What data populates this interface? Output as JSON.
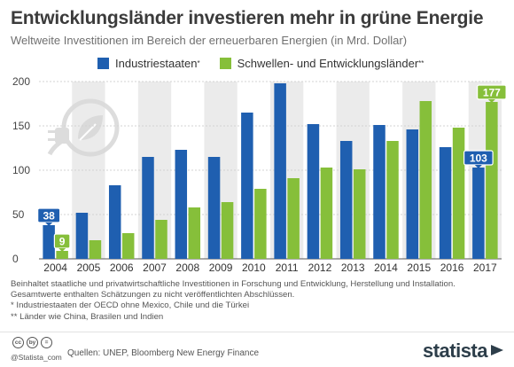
{
  "title": "Entwicklungsländer investieren mehr in grüne Energie",
  "subtitle": "Weltweite Investitionen im Bereich der erneuerbaren Energien (in Mrd. Dollar)",
  "legend": {
    "series1": "Industriestaaten",
    "series1_mark": "*",
    "series2": "Schwellen- und Entwicklungsländer",
    "series2_mark": "**"
  },
  "notes": {
    "line1": "Beinhaltet staatliche und privatwirtschaftliche Investitionen in Forschung und Entwicklung, Herstellung und Installation.",
    "line2": "Gesamtwerte enthalten Schätzungen zu nicht veröffentlichten Abschlüssen.",
    "line3": "*   Industriestaaten der OECD ohne Mexico, Chile und die Türkei",
    "line4": "** Länder wie China, Brasilen und Indien"
  },
  "footer": {
    "cc_icons": [
      "cc",
      "by",
      "="
    ],
    "handle": "@Statista_com",
    "sources": "Quellen: UNEP, Bloomberg New Energy Finance",
    "brand": "statista"
  },
  "colors": {
    "series1": "#1f5fb0",
    "series2": "#86bf3a",
    "band": "#ebebeb",
    "grid": "#d3d3d3"
  },
  "chart_data": {
    "type": "bar",
    "title": "Entwicklungsländer investieren mehr in grüne Energie",
    "subtitle": "Weltweite Investitionen im Bereich der erneuerbaren Energien (in Mrd. Dollar)",
    "categories": [
      "2004",
      "2005",
      "2006",
      "2007",
      "2008",
      "2009",
      "2010",
      "2011",
      "2012",
      "2013",
      "2014",
      "2015",
      "2016",
      "2017"
    ],
    "series": [
      {
        "name": "Industriestaaten*",
        "values": [
          38,
          52,
          83,
          115,
          123,
          115,
          165,
          198,
          152,
          133,
          151,
          146,
          126,
          103
        ]
      },
      {
        "name": "Schwellen- und Entwicklungsländer**",
        "values": [
          9,
          21,
          29,
          44,
          58,
          64,
          79,
          91,
          103,
          101,
          133,
          178,
          148,
          177
        ]
      }
    ],
    "labeled_values": [
      {
        "series": 0,
        "index": 0,
        "label": "38"
      },
      {
        "series": 1,
        "index": 0,
        "label": "9"
      },
      {
        "series": 0,
        "index": 13,
        "label": "103"
      },
      {
        "series": 1,
        "index": 13,
        "label": "177"
      }
    ],
    "ylim": [
      0,
      200
    ],
    "yticks": [
      0,
      50,
      100,
      150,
      200
    ],
    "grid": true,
    "legend_position": "top"
  }
}
